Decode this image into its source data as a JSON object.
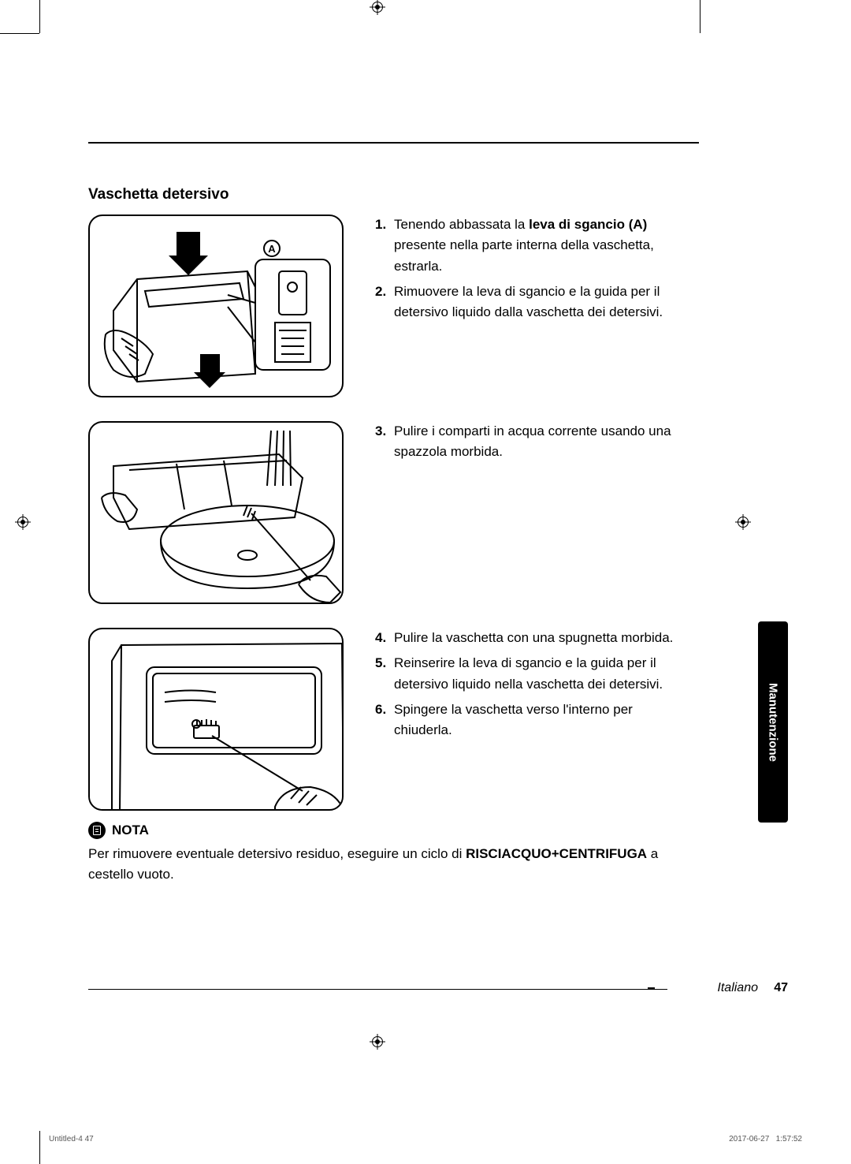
{
  "section_title": "Vaschetta detersivo",
  "figure_label_a": "A",
  "steps": {
    "row1": [
      {
        "num": "1.",
        "parts": [
          {
            "text": "Tenendo abbassata la "
          },
          {
            "text": "leva di sgancio (A)",
            "bold": true
          },
          {
            "text": " presente nella parte interna della vaschetta, estrarla."
          }
        ]
      },
      {
        "num": "2.",
        "parts": [
          {
            "text": "Rimuovere la leva di sgancio e la guida per il detersivo liquido dalla vaschetta dei detersivi."
          }
        ]
      }
    ],
    "row2": [
      {
        "num": "3.",
        "parts": [
          {
            "text": "Pulire i comparti in acqua corrente usando una spazzola morbida."
          }
        ]
      }
    ],
    "row3": [
      {
        "num": "4.",
        "parts": [
          {
            "text": "Pulire la vaschetta con una spugnetta morbida."
          }
        ]
      },
      {
        "num": "5.",
        "parts": [
          {
            "text": "Reinserire la leva di sgancio e la guida per il detersivo liquido nella vaschetta dei detersivi."
          }
        ]
      },
      {
        "num": "6.",
        "parts": [
          {
            "text": "Spingere la vaschetta verso l'interno per chiuderla."
          }
        ]
      }
    ]
  },
  "nota": {
    "label": "NOTA",
    "parts": [
      {
        "text": "Per rimuovere eventuale detersivo residuo, eseguire un ciclo di "
      },
      {
        "text": "RISCIACQUO+CENTRIFUGA",
        "bold": true
      },
      {
        "text": " a cestello vuoto."
      }
    ]
  },
  "side_tab": "Manutenzione",
  "footer": {
    "language": "Italiano",
    "page": "47",
    "small_left": "Untitled-4   47",
    "small_right_date": "2017-06-27",
    "small_right_time": "1:57:52"
  },
  "colors": {
    "text": "#000000",
    "background": "#ffffff",
    "tab_bg": "#000000",
    "tab_text": "#ffffff"
  }
}
